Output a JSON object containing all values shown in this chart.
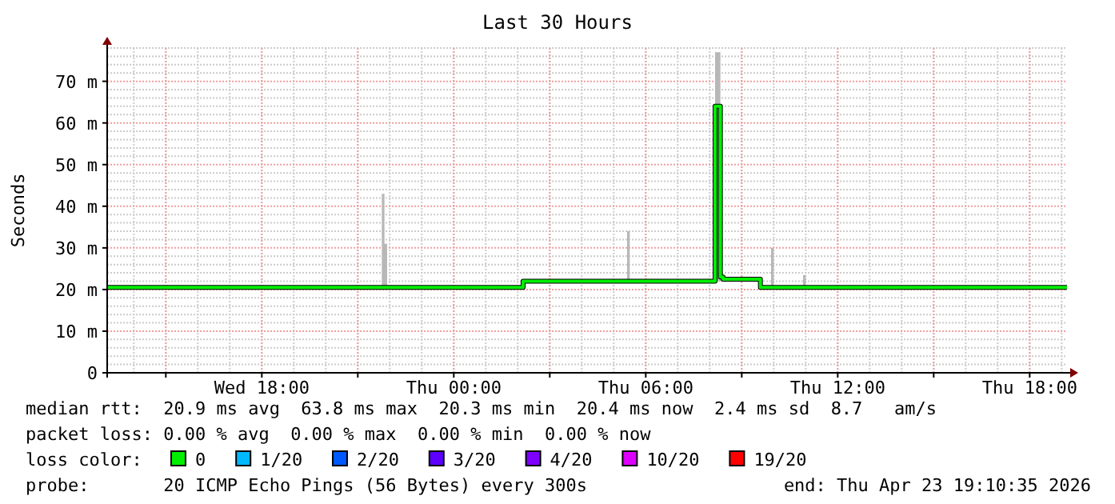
{
  "chart_data": {
    "type": "step",
    "title": "Last 30 Hours",
    "ylabel": "Seconds",
    "x": [
      "2026-04-22T13:10",
      "2026-04-22T21:45",
      "2026-04-22T21:50",
      "2026-04-22T21:55",
      "2026-04-23T02:10",
      "2026-04-23T05:25",
      "2026-04-23T05:30",
      "2026-04-23T08:10",
      "2026-04-23T08:20",
      "2026-04-23T08:25",
      "2026-04-23T09:35",
      "2026-04-23T09:55",
      "2026-04-23T10:00",
      "2026-04-23T10:55",
      "2026-04-23T11:00",
      "2026-04-23T19:10"
    ],
    "xlim": [
      "2026-04-22T13:10",
      "2026-04-23T19:10"
    ],
    "xticks": [
      {
        "value": "2026-04-22T15:00",
        "label": null
      },
      {
        "value": "2026-04-22T18:00",
        "label": "Wed 18:00"
      },
      {
        "value": "2026-04-22T21:00",
        "label": null
      },
      {
        "value": "2026-04-23T00:00",
        "label": "Thu 00:00"
      },
      {
        "value": "2026-04-23T03:00",
        "label": null
      },
      {
        "value": "2026-04-23T06:00",
        "label": "Thu 06:00"
      },
      {
        "value": "2026-04-23T09:00",
        "label": null
      },
      {
        "value": "2026-04-23T12:00",
        "label": "Thu 12:00"
      },
      {
        "value": "2026-04-23T15:00",
        "label": null
      },
      {
        "value": "2026-04-23T18:00",
        "label": "Thu 18:00"
      }
    ],
    "ylim": [
      0,
      78
    ],
    "yticks": [
      0,
      {
        "value": 10,
        "label": "10 m"
      },
      {
        "value": 20,
        "label": "20 m"
      },
      {
        "value": 30,
        "label": "30 m"
      },
      {
        "value": 40,
        "label": "40 m"
      },
      {
        "value": 50,
        "label": "50 m"
      },
      {
        "value": 60,
        "label": "60 m"
      },
      {
        "value": 70,
        "label": "70 m"
      }
    ],
    "grid": true,
    "legend": "bottom",
    "legend_title": "loss color:",
    "series": [
      {
        "name": "0",
        "color": "#00ee00",
        "values": [
          20.5,
          20.5,
          20.5,
          20.5,
          22,
          22,
          22,
          64,
          23,
          22.5,
          20.5,
          20.5,
          20.5,
          20.5,
          20.5,
          20.5
        ],
        "lower": [
          20.3,
          20.3,
          20.3,
          20.3,
          21.8,
          21.8,
          21.8,
          22,
          22,
          22,
          20.3,
          20.3,
          20.3,
          20.3,
          20.3,
          20.3
        ],
        "upper": [
          20.8,
          43,
          31,
          20.8,
          22.4,
          34,
          22.4,
          77,
          24,
          23,
          20.8,
          30,
          20.8,
          23.5,
          20.8,
          20.8
        ]
      },
      {
        "name": "1/20",
        "color": "#00b8ff",
        "values": [
          null,
          null,
          null,
          null,
          null,
          null,
          null,
          null,
          null,
          null,
          null,
          null,
          null,
          null,
          null,
          null
        ]
      },
      {
        "name": "2/20",
        "color": "#0059ff",
        "values": [
          null,
          null,
          null,
          null,
          null,
          null,
          null,
          null,
          null,
          null,
          null,
          null,
          null,
          null,
          null,
          null
        ]
      },
      {
        "name": "3/20",
        "color": "#5e00ff",
        "values": [
          null,
          null,
          null,
          null,
          null,
          null,
          null,
          null,
          null,
          null,
          null,
          null,
          null,
          null,
          null,
          null
        ]
      },
      {
        "name": "4/20",
        "color": "#7e00ff",
        "values": [
          null,
          null,
          null,
          null,
          null,
          null,
          null,
          null,
          null,
          null,
          null,
          null,
          null,
          null,
          null,
          null
        ]
      },
      {
        "name": "10/20",
        "color": "#dd00ff",
        "values": [
          null,
          null,
          null,
          null,
          null,
          null,
          null,
          null,
          null,
          null,
          null,
          null,
          null,
          null,
          null,
          null
        ]
      },
      {
        "name": "19/20",
        "color": "#ff0000",
        "values": [
          null,
          null,
          null,
          null,
          null,
          null,
          null,
          null,
          null,
          null,
          null,
          null,
          null,
          null,
          null,
          null
        ]
      }
    ],
    "annotations": [
      "median rtt:  20.9 ms avg  63.8 ms max  20.3 ms min  20.4 ms now  2.4 ms sd  8.7   am/s",
      "packet loss: 0.00 % avg  0.00 % max  0.00 % min  0.00 % now",
      "probe:       20 ICMP Echo Pings (56 Bytes) every 300s",
      "end: Thu Apr 23 19:10:35 2026"
    ]
  }
}
